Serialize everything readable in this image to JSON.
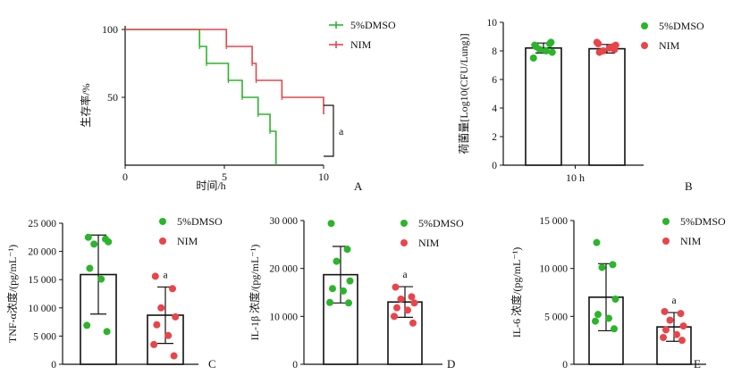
{
  "colors": {
    "dmso": "#2ab52a",
    "nim": "#e8454b",
    "axis": "#111111"
  },
  "chart_data": [
    {
      "id": "A",
      "type": "line",
      "panel_label": "A",
      "xlabel": "时间/h",
      "ylabel": "生存率/%",
      "xlim": [
        0,
        10
      ],
      "ylim": [
        0,
        100
      ],
      "x_ticks": [
        "0",
        "5",
        "10"
      ],
      "y_ticks": [
        "50",
        "100"
      ],
      "annotation": "a",
      "legend": [
        "5%DMSO",
        "NIM"
      ],
      "series": [
        {
          "name": "5%DMSO",
          "x": [
            0,
            3.75,
            4.1,
            5.2,
            5.9,
            6.7,
            7.3,
            7.6
          ],
          "y": [
            100,
            87.5,
            75,
            62.5,
            50,
            37.5,
            25,
            12.5
          ],
          "end_x": 7.6,
          "end_y": 0
        },
        {
          "name": "NIM",
          "x": [
            0,
            5.1,
            6.4,
            6.6,
            7.9
          ],
          "y": [
            100,
            87.5,
            75,
            62.5,
            50
          ],
          "end_x": 10,
          "end_y": 37.5
        }
      ]
    },
    {
      "id": "B",
      "type": "bar",
      "panel_label": "B",
      "ylabel": "荷菌量[Log10(CFU/Lung)]",
      "categories": [
        "10 h"
      ],
      "ylim": [
        0,
        10
      ],
      "y_ticks": [
        "0",
        "2",
        "4",
        "6",
        "8",
        "10"
      ],
      "legend": [
        "5%DMSO",
        "NIM"
      ],
      "series": [
        {
          "name": "5%DMSO",
          "value": 8.2,
          "err": 0.35,
          "points": [
            8.4,
            8.5,
            8.1,
            7.9,
            8.3,
            8.0,
            7.5,
            8.6
          ]
        },
        {
          "name": "NIM",
          "value": 8.15,
          "err": 0.3,
          "points": [
            8.5,
            8.3,
            8.0,
            8.4,
            7.9,
            8.2,
            8.6,
            8.1
          ]
        }
      ]
    },
    {
      "id": "C",
      "type": "bar",
      "panel_label": "C",
      "ylabel": "TNF-α浓度/(pg/mL⁻¹)",
      "ylim": [
        0,
        25000
      ],
      "y_ticks": [
        "0",
        "5 000",
        "10 000",
        "15 000",
        "20 000",
        "25 000"
      ],
      "annotation": "a",
      "legend": [
        "5%DMSO",
        "NIM"
      ],
      "series": [
        {
          "name": "5%DMSO",
          "value": 15900,
          "err": 7000,
          "points": [
            22500,
            22200,
            21300,
            21700,
            17000,
            15100,
            6900,
            5800
          ]
        },
        {
          "name": "NIM",
          "value": 8700,
          "err": 5000,
          "points": [
            15600,
            13400,
            10000,
            8400,
            7000,
            5100,
            3500,
            1500
          ]
        }
      ]
    },
    {
      "id": "D",
      "type": "bar",
      "panel_label": "D",
      "ylabel": "IL-1β 浓度/(pg/mL⁻¹)",
      "ylim": [
        0,
        30000
      ],
      "y_ticks": [
        "0",
        "10 000",
        "20 000",
        "30 000"
      ],
      "annotation": "a",
      "legend": [
        "5%DMSO",
        "NIM"
      ],
      "series": [
        {
          "name": "5%DMSO",
          "value": 18700,
          "err": 5900,
          "points": [
            29400,
            24000,
            21500,
            17400,
            15800,
            15300,
            12900,
            12800
          ]
        },
        {
          "name": "NIM",
          "value": 13000,
          "err": 3200,
          "points": [
            16100,
            14100,
            13600,
            12800,
            11800,
            11300,
            10000,
            8600
          ]
        }
      ]
    },
    {
      "id": "E",
      "type": "bar",
      "panel_label": "E",
      "ylabel": "IL-6 浓度/(pg/mL⁻¹)",
      "ylim": [
        0,
        15000
      ],
      "y_ticks": [
        "0",
        "5 000",
        "10 000",
        "15 000"
      ],
      "annotation": "a",
      "legend": [
        "5%DMSO",
        "NIM"
      ],
      "series": [
        {
          "name": "5%DMSO",
          "value": 7000,
          "err": 3500,
          "points": [
            12700,
            10400,
            10100,
            6800,
            5200,
            4800,
            4500,
            3700
          ]
        },
        {
          "name": "NIM",
          "value": 3900,
          "err": 1500,
          "points": [
            5500,
            5300,
            4600,
            4000,
            3600,
            3100,
            2800,
            2500
          ]
        }
      ]
    }
  ]
}
